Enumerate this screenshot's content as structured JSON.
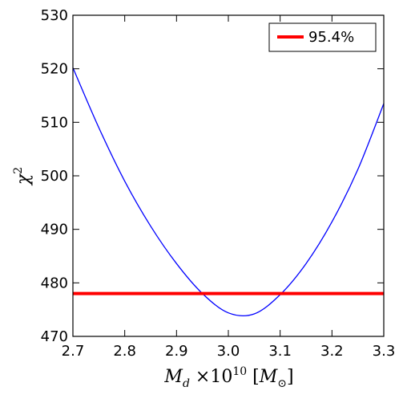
{
  "chart_data": {
    "type": "line",
    "xlabel": "M_d ×10^10 [M_⊙]",
    "ylabel": "χ²",
    "xlim": [
      2.7,
      3.3
    ],
    "ylim": [
      470,
      530
    ],
    "x_ticks": [
      2.7,
      2.8,
      2.9,
      3.0,
      3.1,
      3.2,
      3.3
    ],
    "y_ticks": [
      470,
      480,
      490,
      500,
      510,
      520,
      530
    ],
    "x_tick_labels": [
      "2.7",
      "2.8",
      "2.9",
      "3.0",
      "3.1",
      "3.2",
      "3.3"
    ],
    "y_tick_labels": [
      "470",
      "480",
      "490",
      "500",
      "510",
      "520",
      "530"
    ],
    "grid": false,
    "legend_position": "top-right",
    "series": [
      {
        "color": "#0000ff",
        "x": [
          2.7,
          2.75,
          2.8,
          2.85,
          2.9,
          2.95,
          3.0,
          3.05,
          3.1,
          3.15,
          3.2,
          3.25,
          3.3
        ],
        "y": [
          520.2,
          509.0,
          499.0,
          490.6,
          483.6,
          478.0,
          474.4,
          474.2,
          477.8,
          483.6,
          491.4,
          501.2,
          513.5
        ]
      },
      {
        "name": "95.4%",
        "color": "#ff0000",
        "x": [
          2.7,
          3.3
        ],
        "y": [
          478.0,
          478.0
        ]
      }
    ]
  }
}
